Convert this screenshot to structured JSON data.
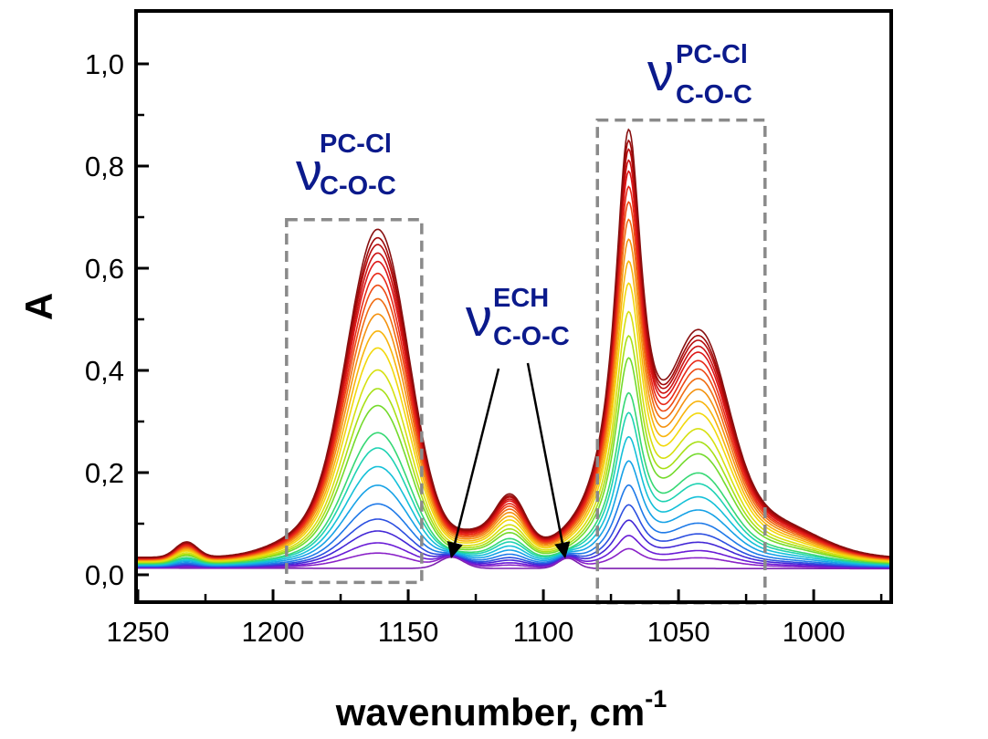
{
  "chart_data": {
    "type": "line",
    "title": "",
    "xlabel": "wavenumber, cm",
    "xlabel_superscript": "-1",
    "ylabel": "A",
    "xlim": [
      1250,
      972
    ],
    "ylim": [
      -0.05,
      1.1
    ],
    "x_reversed": true,
    "x_ticks": [
      1250,
      1200,
      1150,
      1100,
      1050,
      1000
    ],
    "x_tick_labels": [
      "1250",
      "1200",
      "1150",
      "1100",
      "1050",
      "1000"
    ],
    "y_ticks": [
      0.0,
      0.2,
      0.4,
      0.6,
      0.8,
      1.0
    ],
    "y_tick_labels": [
      "0,0",
      "0,2",
      "0,4",
      "0,6",
      "0,8",
      "1,0"
    ],
    "grid": false,
    "legend": "none",
    "series_note": "24 spectra; color runs purple to dark red as the peak absorbance increases",
    "series_colors": [
      "#7d1fb0",
      "#8a22c8",
      "#6a1cd6",
      "#4328d6",
      "#2c4fe0",
      "#1f7ae8",
      "#16a2e6",
      "#14c0d8",
      "#1ed2b2",
      "#36d874",
      "#74da2c",
      "#a8e016",
      "#d6e010",
      "#f2d80c",
      "#f8b40c",
      "#f49210",
      "#f06c12",
      "#ee4a14",
      "#e82a18",
      "#de1818",
      "#cc1212",
      "#b80c0c",
      "#a00808",
      "#881010"
    ],
    "series_scale": [
      0.0,
      0.045,
      0.075,
      0.11,
      0.145,
      0.19,
      0.245,
      0.3,
      0.355,
      0.4,
      0.48,
      0.53,
      0.585,
      0.65,
      0.7,
      0.75,
      0.795,
      0.835,
      0.87,
      0.905,
      0.93,
      0.955,
      0.975,
      1.0
    ],
    "peaks": [
      {
        "position": 1162,
        "max_absorbance": 0.66
      },
      {
        "position": 1112,
        "max_absorbance": 0.13
      },
      {
        "position": 1068,
        "max_absorbance": 0.86
      },
      {
        "position": 1042,
        "max_absorbance": 0.45
      }
    ],
    "annotations": [
      {
        "id": "left-box",
        "symbol": "ν",
        "superscript": "PC-Cl",
        "subscript": "C-O-C",
        "x_range": [
          1195,
          1145
        ],
        "y_range": [
          -0.015,
          0.695
        ]
      },
      {
        "id": "right-box",
        "symbol": "ν",
        "superscript": "PC-Cl",
        "subscript": "C-O-C",
        "x_range": [
          1080,
          1018
        ],
        "y_range": [
          -0.055,
          0.89
        ]
      },
      {
        "id": "center",
        "symbol": "ν",
        "superscript": "ECH",
        "subscript": "C-O-C",
        "arrow_targets": [
          1134,
          1092
        ]
      }
    ]
  }
}
